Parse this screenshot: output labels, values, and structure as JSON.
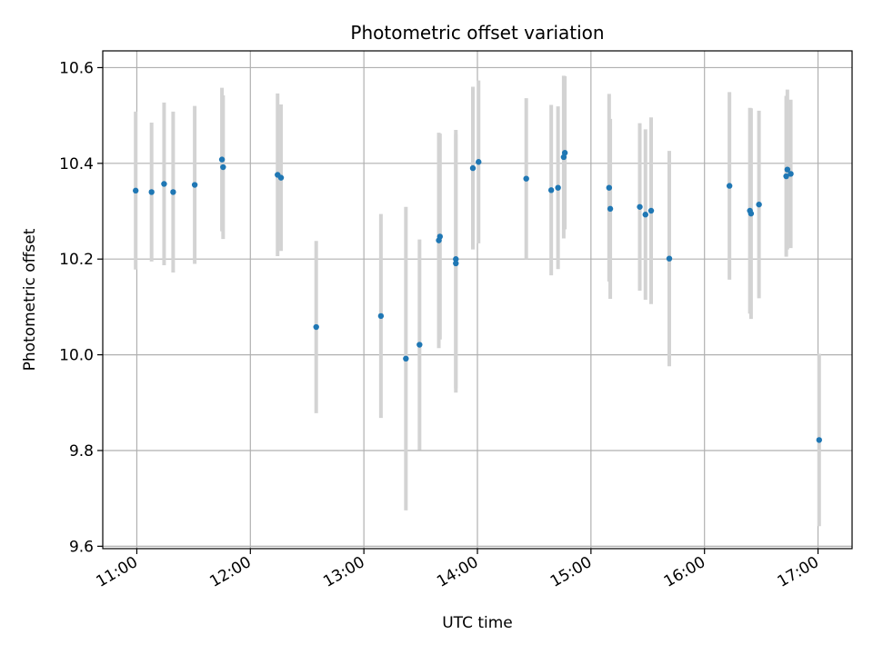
{
  "chart_data": {
    "type": "scatter",
    "title": "Photometric offset variation",
    "xlabel": "UTC time",
    "ylabel": "Photometric offset",
    "x_unit": "hours (UTC)",
    "xlim": [
      10.7,
      17.3
    ],
    "ylim": [
      9.595,
      10.635
    ],
    "x_ticks": [
      {
        "value": 11,
        "label": "11:00"
      },
      {
        "value": 12,
        "label": "12:00"
      },
      {
        "value": 13,
        "label": "13:00"
      },
      {
        "value": 14,
        "label": "14:00"
      },
      {
        "value": 15,
        "label": "15:00"
      },
      {
        "value": 16,
        "label": "16:00"
      },
      {
        "value": 17,
        "label": "17:00"
      }
    ],
    "y_ticks": [
      {
        "value": 9.6,
        "label": "9.6"
      },
      {
        "value": 9.8,
        "label": "9.8"
      },
      {
        "value": 10.0,
        "label": "10.0"
      },
      {
        "value": 10.2,
        "label": "10.2"
      },
      {
        "value": 10.4,
        "label": "10.4"
      },
      {
        "value": 10.6,
        "label": "10.6"
      }
    ],
    "grid": true,
    "marker_color": "#1f77b4",
    "errorbar_color": "#d3d3d3",
    "points": [
      {
        "x": 10.99,
        "y": 10.343,
        "err": 0.165
      },
      {
        "x": 11.13,
        "y": 10.34,
        "err": 0.145
      },
      {
        "x": 11.24,
        "y": 10.357,
        "err": 0.17
      },
      {
        "x": 11.32,
        "y": 10.34,
        "err": 0.168
      },
      {
        "x": 11.51,
        "y": 10.355,
        "err": 0.165
      },
      {
        "x": 11.75,
        "y": 10.408,
        "err": 0.15
      },
      {
        "x": 11.76,
        "y": 10.392,
        "err": 0.15
      },
      {
        "x": 12.24,
        "y": 10.376,
        "err": 0.17
      },
      {
        "x": 12.27,
        "y": 10.37,
        "err": 0.153
      },
      {
        "x": 12.58,
        "y": 10.058,
        "err": 0.18
      },
      {
        "x": 13.15,
        "y": 10.081,
        "err": 0.213
      },
      {
        "x": 13.37,
        "y": 9.992,
        "err": 0.317
      },
      {
        "x": 13.49,
        "y": 10.021,
        "err": 0.22
      },
      {
        "x": 13.66,
        "y": 10.239,
        "err": 0.225
      },
      {
        "x": 13.67,
        "y": 10.247,
        "err": 0.215
      },
      {
        "x": 13.81,
        "y": 10.191,
        "err": 0.27
      },
      {
        "x": 13.81,
        "y": 10.2,
        "err": 0.27
      },
      {
        "x": 13.96,
        "y": 10.39,
        "err": 0.17
      },
      {
        "x": 14.01,
        "y": 10.403,
        "err": 0.17
      },
      {
        "x": 14.43,
        "y": 10.368,
        "err": 0.168
      },
      {
        "x": 14.65,
        "y": 10.344,
        "err": 0.178
      },
      {
        "x": 14.71,
        "y": 10.349,
        "err": 0.17
      },
      {
        "x": 14.76,
        "y": 10.413,
        "err": 0.17
      },
      {
        "x": 14.77,
        "y": 10.422,
        "err": 0.16
      },
      {
        "x": 15.16,
        "y": 10.349,
        "err": 0.196
      },
      {
        "x": 15.17,
        "y": 10.305,
        "err": 0.188
      },
      {
        "x": 15.43,
        "y": 10.309,
        "err": 0.175
      },
      {
        "x": 15.48,
        "y": 10.293,
        "err": 0.178
      },
      {
        "x": 15.53,
        "y": 10.301,
        "err": 0.195
      },
      {
        "x": 15.69,
        "y": 10.201,
        "err": 0.225
      },
      {
        "x": 16.22,
        "y": 10.353,
        "err": 0.196
      },
      {
        "x": 16.4,
        "y": 10.301,
        "err": 0.215
      },
      {
        "x": 16.41,
        "y": 10.295,
        "err": 0.22
      },
      {
        "x": 16.48,
        "y": 10.314,
        "err": 0.196
      },
      {
        "x": 16.72,
        "y": 10.373,
        "err": 0.168
      },
      {
        "x": 16.73,
        "y": 10.387,
        "err": 0.167
      },
      {
        "x": 16.76,
        "y": 10.378,
        "err": 0.155
      },
      {
        "x": 17.01,
        "y": 9.822,
        "err": 0.18
      }
    ]
  }
}
